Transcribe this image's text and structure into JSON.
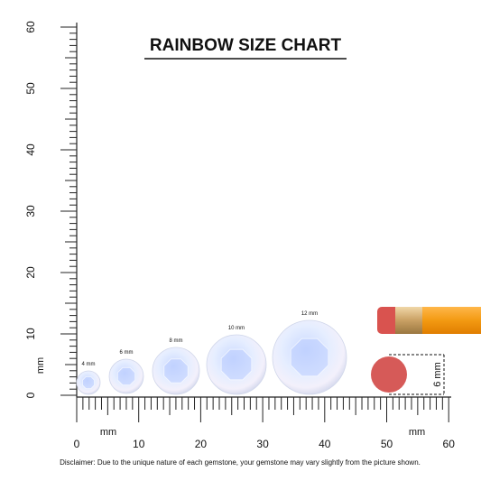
{
  "title": "RAINBOW SIZE CHART",
  "ruler": {
    "x_labels": [
      "0",
      "10",
      "20",
      "30",
      "40",
      "50",
      "60"
    ],
    "y_labels": [
      "0",
      "10",
      "20",
      "30",
      "40",
      "50",
      "60"
    ],
    "x_units": [
      "mm",
      "mm"
    ],
    "y_unit": "mm"
  },
  "gems": [
    {
      "label": "4 mm"
    },
    {
      "label": "6 mm"
    },
    {
      "label": "8 mm"
    },
    {
      "label": "10 mm"
    },
    {
      "label": "12 mm"
    }
  ],
  "eraser_label": "6 mm",
  "disclaimer": "Disclaimer: Due to the unique nature of each gemstone, your gemstone may vary slightly from the picture shown."
}
